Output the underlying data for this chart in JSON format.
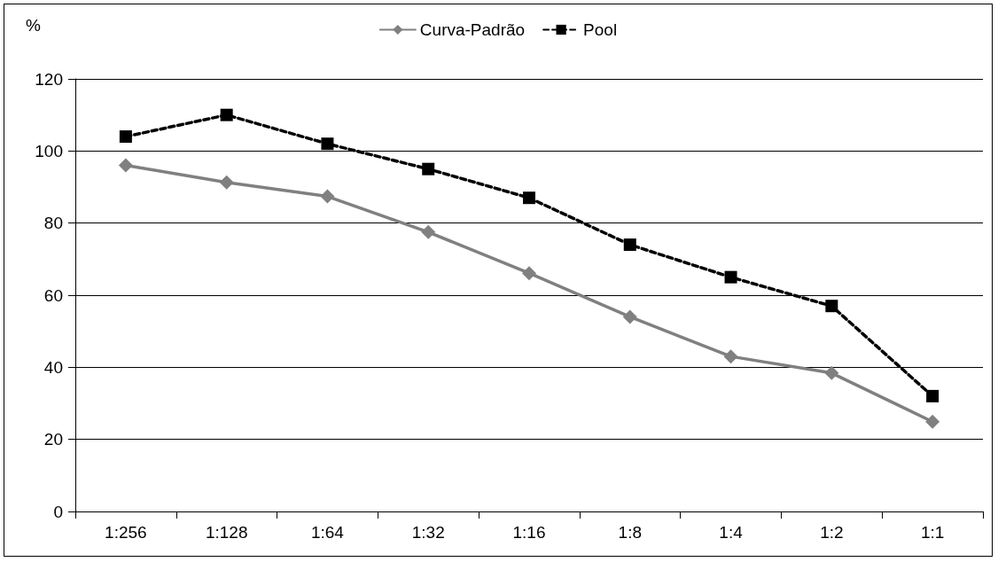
{
  "chart_data": {
    "type": "line",
    "ylabel": "%",
    "categories": [
      "1:256",
      "1:128",
      "1:64",
      "1:32",
      "1:16",
      "1:8",
      "1:4",
      "1:2",
      "1:1"
    ],
    "series": [
      {
        "name": "Curva-Padrão",
        "color": "#808080",
        "marker": "diamond",
        "line_style": "solid",
        "values": [
          96,
          91.3,
          87.4,
          77.5,
          66.1,
          54,
          43,
          38.4,
          24.9
        ]
      },
      {
        "name": "Pool",
        "color": "#000000",
        "marker": "square",
        "line_style": "dashed",
        "values": [
          104,
          110,
          102,
          95,
          87,
          74,
          65,
          57,
          32
        ]
      }
    ],
    "ylim": [
      0,
      120
    ],
    "yticks": [
      0,
      20,
      40,
      60,
      80,
      100,
      120
    ],
    "grid": "y",
    "legend": "top"
  }
}
